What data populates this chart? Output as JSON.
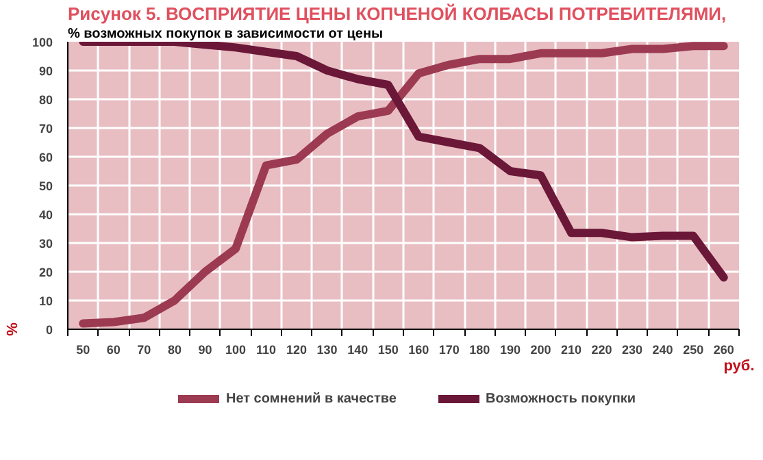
{
  "chart_data": {
    "type": "line",
    "title": "Рисунок 5. ВОСПРИЯТИЕ ЦЕНЫ КОПЧЕНОЙ КОЛБАСЫ ПОТРЕБИТЕЛЯМИ,",
    "subtitle": "% возможных покупок в зависимости от цены",
    "xlabel": "руб.",
    "ylabel": "%",
    "categories": [
      "50",
      "60",
      "70",
      "80",
      "90",
      "100",
      "110",
      "120",
      "130",
      "140",
      "150",
      "160",
      "170",
      "180",
      "190",
      "200",
      "210",
      "220",
      "230",
      "240",
      "250",
      "260"
    ],
    "series": [
      {
        "name": "Нет сомнений в качестве",
        "color": "#9c3a52",
        "values": [
          2,
          2.5,
          4,
          10,
          20,
          28,
          57,
          59,
          68,
          74,
          76,
          89,
          92,
          94,
          94,
          96,
          96,
          96,
          97.5,
          97.5,
          98.5,
          98.5
        ]
      },
      {
        "name": "Возможность покупки",
        "color": "#6b1738",
        "values": [
          100,
          100,
          100,
          100,
          99,
          98,
          96.5,
          95,
          90,
          87,
          85,
          67,
          65,
          63,
          55,
          53.5,
          33.5,
          33.5,
          32,
          32.5,
          32.5,
          18
        ]
      }
    ],
    "ylim": [
      0,
      100
    ],
    "yticks": [
      0,
      10,
      20,
      30,
      40,
      50,
      60,
      70,
      80,
      90,
      100
    ],
    "grid": true,
    "legend": "bottom",
    "line_style": "solid",
    "marker": "none"
  }
}
